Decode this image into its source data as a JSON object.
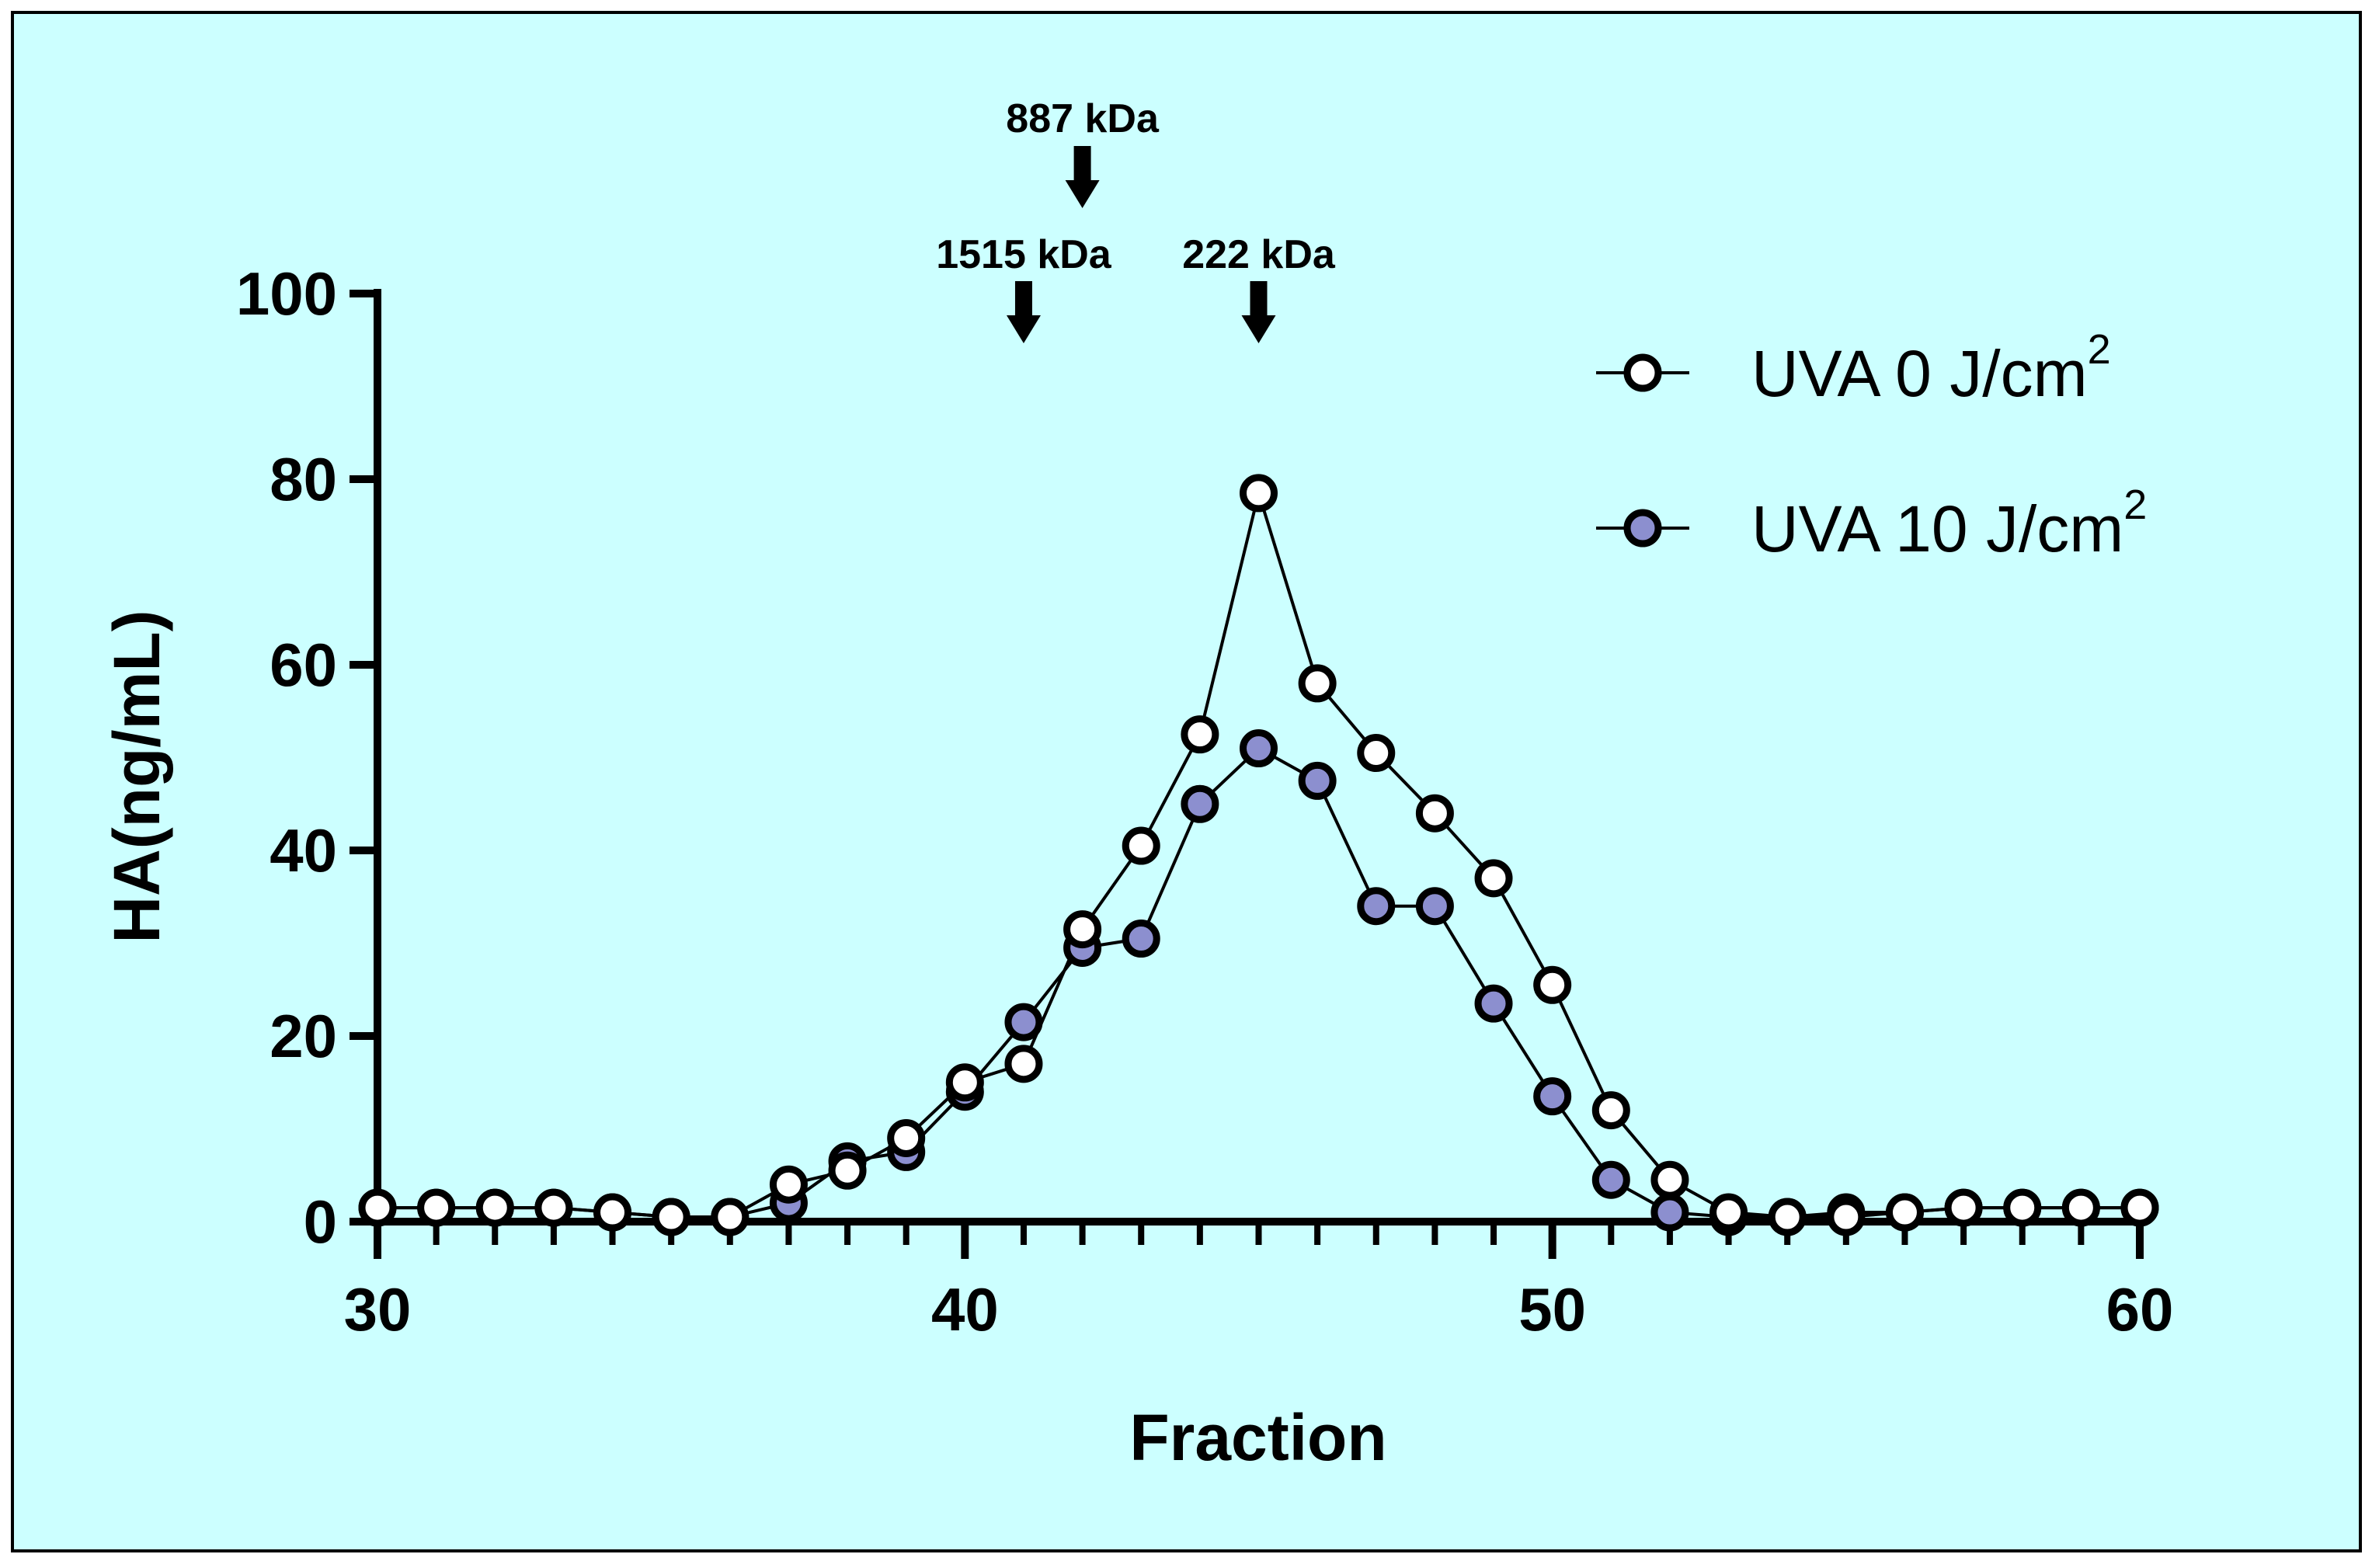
{
  "chart_data": {
    "type": "line",
    "xlabel": "Fraction",
    "ylabel": "HA(ng/mL)",
    "xlim": [
      30,
      60
    ],
    "ylim": [
      0,
      100
    ],
    "xticks": [
      30,
      40,
      50,
      60
    ],
    "yticks": [
      0,
      20,
      40,
      60,
      80,
      100
    ],
    "x": [
      30,
      31,
      32,
      33,
      34,
      35,
      36,
      37,
      38,
      39,
      40,
      41,
      42,
      43,
      44,
      45,
      46,
      47,
      48,
      49,
      50,
      51,
      52,
      53,
      54,
      55,
      56,
      57,
      58,
      59,
      60
    ],
    "series": [
      {
        "name": "UVA 10 J/cm2",
        "label_main": "UVA 10 J/cm",
        "label_sup": "2",
        "fill": "#8c8fcf",
        "values": [
          1.5,
          1.5,
          1.5,
          1.5,
          1.0,
          0.5,
          0.5,
          2.0,
          6.5,
          7.5,
          14.0,
          21.5,
          29.5,
          30.5,
          45.0,
          51.0,
          47.5,
          34.0,
          34.0,
          23.5,
          13.5,
          4.5,
          1.0,
          0.5,
          0.5,
          1.0,
          1.0,
          1.5,
          1.5,
          1.5,
          1.5
        ]
      },
      {
        "name": "UVA 0 J/cm2",
        "label_main": "UVA   0 J/cm",
        "label_sup": "2",
        "fill": "#ffffff",
        "values": [
          1.5,
          1.5,
          1.5,
          1.5,
          1.0,
          0.5,
          0.5,
          4.0,
          5.5,
          9.0,
          15.0,
          17.0,
          31.5,
          40.5,
          52.5,
          78.5,
          58.0,
          50.5,
          44.0,
          37.0,
          25.5,
          12.0,
          4.5,
          1.0,
          0.5,
          0.5,
          1.0,
          1.5,
          1.5,
          1.5,
          1.5
        ]
      }
    ],
    "annotations": [
      {
        "text": "887 kDa",
        "x": 42,
        "row": "upper"
      },
      {
        "text": "1515 kDa",
        "x": 41,
        "row": "lower"
      },
      {
        "text": "222 kDa",
        "x": 45,
        "row": "lower"
      }
    ],
    "legend_position": "top-right",
    "background": "#ccffff",
    "grid": false
  }
}
